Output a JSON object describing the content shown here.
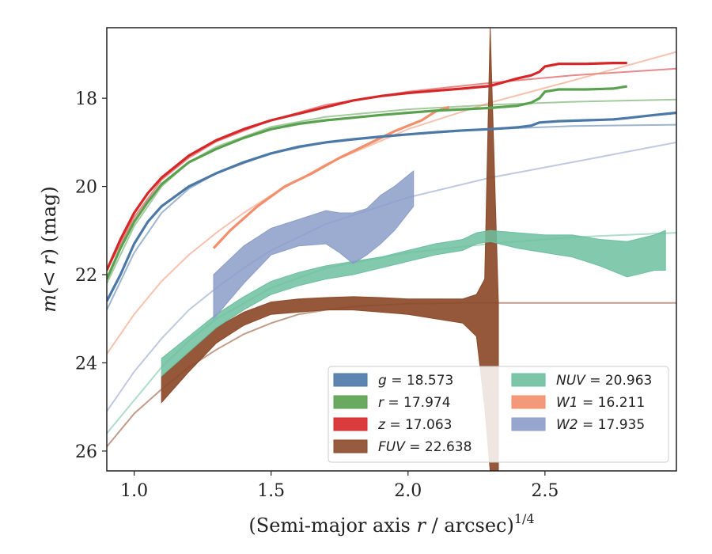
{
  "chart_data": {
    "type": "line",
    "title": "",
    "xlabel_main": "(Semi-major axis ",
    "xlabel_var": "r",
    "xlabel_rest": " / arcsec)",
    "xlabel_exp": "1/4",
    "ylabel_m": "m",
    "ylabel_open": "(",
    "ylabel_lt": "< ",
    "ylabel_r": "r",
    "ylabel_close": ")",
    "ylabel_unit": " (mag)",
    "xlim": [
      0.9,
      2.98
    ],
    "ylim": [
      26.45,
      16.4
    ],
    "y_inverted": true,
    "grid": false,
    "legend_placement": "lower-right",
    "x_ticks": [
      1.0,
      1.5,
      2.0,
      2.5
    ],
    "x_tick_labels": [
      "1.0",
      "1.5",
      "2.0",
      "2.5"
    ],
    "y_ticks": [
      18,
      20,
      22,
      24,
      26
    ],
    "y_tick_labels": [
      "18",
      "20",
      "22",
      "24",
      "26"
    ],
    "series": [
      {
        "name": "g",
        "label_var": "g",
        "label_val": " = 18.573",
        "color": "#4c78a8",
        "data": [
          [
            0.9,
            22.6
          ],
          [
            0.95,
            22.0
          ],
          [
            1.0,
            21.3
          ],
          [
            1.05,
            20.8
          ],
          [
            1.1,
            20.45
          ],
          [
            1.2,
            20.0
          ],
          [
            1.3,
            19.7
          ],
          [
            1.4,
            19.45
          ],
          [
            1.5,
            19.25
          ],
          [
            1.6,
            19.1
          ],
          [
            1.7,
            19.0
          ],
          [
            1.8,
            18.93
          ],
          [
            1.9,
            18.87
          ],
          [
            2.0,
            18.82
          ],
          [
            2.1,
            18.77
          ],
          [
            2.2,
            18.73
          ],
          [
            2.3,
            18.7
          ],
          [
            2.4,
            18.66
          ],
          [
            2.45,
            18.62
          ],
          [
            2.48,
            18.55
          ],
          [
            2.55,
            18.52
          ],
          [
            2.65,
            18.5
          ],
          [
            2.75,
            18.48
          ],
          [
            2.8,
            18.45
          ],
          [
            2.9,
            18.38
          ],
          [
            2.98,
            18.33
          ]
        ],
        "model": [
          [
            0.9,
            22.8
          ],
          [
            1.0,
            21.5
          ],
          [
            1.1,
            20.6
          ],
          [
            1.2,
            20.05
          ],
          [
            1.3,
            19.7
          ],
          [
            1.5,
            19.25
          ],
          [
            1.7,
            19.0
          ],
          [
            2.0,
            18.82
          ],
          [
            2.3,
            18.7
          ],
          [
            2.6,
            18.63
          ],
          [
            2.98,
            18.6
          ]
        ]
      },
      {
        "name": "r",
        "label_var": "r",
        "label_val": " = 17.974",
        "color": "#59a14f",
        "data": [
          [
            0.9,
            22.1
          ],
          [
            0.95,
            21.4
          ],
          [
            1.0,
            20.8
          ],
          [
            1.05,
            20.35
          ],
          [
            1.1,
            19.95
          ],
          [
            1.2,
            19.45
          ],
          [
            1.3,
            19.15
          ],
          [
            1.4,
            18.9
          ],
          [
            1.5,
            18.7
          ],
          [
            1.6,
            18.58
          ],
          [
            1.7,
            18.5
          ],
          [
            1.8,
            18.44
          ],
          [
            1.9,
            18.38
          ],
          [
            2.0,
            18.33
          ],
          [
            2.1,
            18.28
          ],
          [
            2.2,
            18.25
          ],
          [
            2.3,
            18.22
          ],
          [
            2.4,
            18.17
          ],
          [
            2.45,
            18.1
          ],
          [
            2.48,
            18.0
          ],
          [
            2.5,
            17.85
          ],
          [
            2.55,
            17.8
          ],
          [
            2.65,
            17.8
          ],
          [
            2.75,
            17.78
          ],
          [
            2.8,
            17.73
          ]
        ],
        "model": [
          [
            0.9,
            22.2
          ],
          [
            1.0,
            20.9
          ],
          [
            1.1,
            20.0
          ],
          [
            1.2,
            19.45
          ],
          [
            1.3,
            19.1
          ],
          [
            1.5,
            18.65
          ],
          [
            1.7,
            18.42
          ],
          [
            2.0,
            18.25
          ],
          [
            2.3,
            18.15
          ],
          [
            2.6,
            18.08
          ],
          [
            2.98,
            18.03
          ]
        ]
      },
      {
        "name": "z",
        "label_var": "z",
        "label_val": " = 17.063",
        "color": "#d62728",
        "data": [
          [
            0.9,
            21.9
          ],
          [
            0.95,
            21.2
          ],
          [
            1.0,
            20.6
          ],
          [
            1.05,
            20.15
          ],
          [
            1.1,
            19.8
          ],
          [
            1.2,
            19.3
          ],
          [
            1.3,
            18.95
          ],
          [
            1.4,
            18.7
          ],
          [
            1.5,
            18.5
          ],
          [
            1.6,
            18.35
          ],
          [
            1.7,
            18.2
          ],
          [
            1.8,
            18.05
          ],
          [
            1.9,
            17.95
          ],
          [
            2.0,
            17.88
          ],
          [
            2.1,
            17.83
          ],
          [
            2.2,
            17.78
          ],
          [
            2.3,
            17.72
          ],
          [
            2.4,
            17.55
          ],
          [
            2.45,
            17.48
          ],
          [
            2.48,
            17.4
          ],
          [
            2.5,
            17.28
          ],
          [
            2.55,
            17.22
          ],
          [
            2.65,
            17.22
          ],
          [
            2.75,
            17.2
          ],
          [
            2.8,
            17.2
          ]
        ],
        "model": [
          [
            0.9,
            21.9
          ],
          [
            1.0,
            20.7
          ],
          [
            1.1,
            19.85
          ],
          [
            1.2,
            19.35
          ],
          [
            1.3,
            18.98
          ],
          [
            1.5,
            18.5
          ],
          [
            1.7,
            18.15
          ],
          [
            2.0,
            17.85
          ],
          [
            2.3,
            17.65
          ],
          [
            2.6,
            17.48
          ],
          [
            2.98,
            17.33
          ]
        ]
      },
      {
        "name": "FUV",
        "label_var": "FUV",
        "label_val": " = 22.638",
        "color": "#8c4a2a",
        "band": true,
        "data_upper": [
          [
            1.1,
            24.3
          ],
          [
            1.2,
            23.75
          ],
          [
            1.3,
            23.2
          ],
          [
            1.4,
            22.85
          ],
          [
            1.5,
            22.62
          ],
          [
            1.6,
            22.55
          ],
          [
            1.7,
            22.52
          ],
          [
            1.8,
            22.5
          ],
          [
            1.9,
            22.52
          ],
          [
            2.0,
            22.55
          ],
          [
            2.1,
            22.55
          ],
          [
            2.2,
            22.55
          ],
          [
            2.25,
            22.45
          ],
          [
            2.28,
            22.1
          ],
          [
            2.3,
            16.4
          ],
          [
            2.33,
            22.65
          ]
        ],
        "data_lower": [
          [
            1.1,
            24.9
          ],
          [
            1.2,
            24.2
          ],
          [
            1.3,
            23.55
          ],
          [
            1.4,
            23.15
          ],
          [
            1.5,
            22.9
          ],
          [
            1.6,
            22.85
          ],
          [
            1.7,
            22.8
          ],
          [
            1.8,
            22.8
          ],
          [
            1.9,
            22.85
          ],
          [
            2.0,
            22.9
          ],
          [
            2.1,
            23.0
          ],
          [
            2.2,
            23.1
          ],
          [
            2.25,
            23.4
          ],
          [
            2.28,
            25.0
          ],
          [
            2.3,
            26.45
          ],
          [
            2.33,
            26.45
          ]
        ],
        "model": [
          [
            0.9,
            25.9
          ],
          [
            1.0,
            25.15
          ],
          [
            1.1,
            24.6
          ],
          [
            1.2,
            24.1
          ],
          [
            1.3,
            23.7
          ],
          [
            1.4,
            23.35
          ],
          [
            1.5,
            23.1
          ],
          [
            1.6,
            22.9
          ],
          [
            1.7,
            22.8
          ],
          [
            1.8,
            22.72
          ],
          [
            2.0,
            22.66
          ],
          [
            2.2,
            22.64
          ],
          [
            2.98,
            22.64
          ]
        ]
      },
      {
        "name": "NUV",
        "label_var": "NUV",
        "label_val": " = 20.963",
        "color": "#6dbfa0",
        "band": true,
        "data_upper": [
          [
            1.1,
            23.9
          ],
          [
            1.2,
            23.4
          ],
          [
            1.3,
            22.9
          ],
          [
            1.4,
            22.5
          ],
          [
            1.5,
            22.15
          ],
          [
            1.6,
            21.95
          ],
          [
            1.7,
            21.8
          ],
          [
            1.8,
            21.7
          ],
          [
            1.9,
            21.6
          ],
          [
            2.0,
            21.45
          ],
          [
            2.1,
            21.3
          ],
          [
            2.2,
            21.2
          ],
          [
            2.25,
            21.05
          ],
          [
            2.3,
            21.0
          ],
          [
            2.4,
            21.05
          ],
          [
            2.5,
            21.1
          ],
          [
            2.6,
            21.1
          ],
          [
            2.7,
            21.2
          ],
          [
            2.8,
            21.25
          ],
          [
            2.9,
            21.1
          ],
          [
            2.94,
            21.0
          ]
        ],
        "data_lower": [
          [
            1.1,
            24.3
          ],
          [
            1.2,
            23.75
          ],
          [
            1.3,
            23.2
          ],
          [
            1.4,
            22.8
          ],
          [
            1.5,
            22.45
          ],
          [
            1.6,
            22.25
          ],
          [
            1.7,
            22.1
          ],
          [
            1.8,
            22.0
          ],
          [
            1.9,
            21.85
          ],
          [
            2.0,
            21.7
          ],
          [
            2.1,
            21.55
          ],
          [
            2.2,
            21.45
          ],
          [
            2.25,
            21.3
          ],
          [
            2.3,
            21.25
          ],
          [
            2.4,
            21.4
          ],
          [
            2.5,
            21.5
          ],
          [
            2.6,
            21.6
          ],
          [
            2.7,
            21.8
          ],
          [
            2.8,
            22.05
          ],
          [
            2.9,
            21.9
          ],
          [
            2.94,
            21.9
          ]
        ],
        "model": [
          [
            0.9,
            25.6
          ],
          [
            1.0,
            24.85
          ],
          [
            1.1,
            24.1
          ],
          [
            1.2,
            23.5
          ],
          [
            1.3,
            23.0
          ],
          [
            1.5,
            22.3
          ],
          [
            1.7,
            21.85
          ],
          [
            2.0,
            21.5
          ],
          [
            2.3,
            21.3
          ],
          [
            2.6,
            21.15
          ],
          [
            2.98,
            21.05
          ]
        ]
      },
      {
        "name": "W1",
        "label_var": "W1",
        "label_val": " = 16.211",
        "color": "#f28e6b",
        "data": [
          [
            1.29,
            21.4
          ],
          [
            1.35,
            21.0
          ],
          [
            1.45,
            20.45
          ],
          [
            1.55,
            20.0
          ],
          [
            1.65,
            19.7
          ],
          [
            1.75,
            19.35
          ],
          [
            1.85,
            19.05
          ],
          [
            1.95,
            18.75
          ],
          [
            2.05,
            18.5
          ],
          [
            2.1,
            18.3
          ],
          [
            2.15,
            18.2
          ]
        ],
        "model": [
          [
            0.9,
            23.8
          ],
          [
            1.0,
            22.9
          ],
          [
            1.1,
            22.15
          ],
          [
            1.2,
            21.55
          ],
          [
            1.3,
            21.05
          ],
          [
            1.4,
            20.6
          ],
          [
            1.5,
            20.2
          ],
          [
            1.7,
            19.5
          ],
          [
            2.0,
            18.7
          ],
          [
            2.3,
            18.1
          ],
          [
            2.6,
            17.6
          ],
          [
            2.98,
            16.95
          ]
        ]
      },
      {
        "name": "W2",
        "label_var": "W2",
        "label_val": " = 17.935",
        "color": "#8b9cc8",
        "band": true,
        "data_upper": [
          [
            1.29,
            22.0
          ],
          [
            1.4,
            21.35
          ],
          [
            1.5,
            20.95
          ],
          [
            1.6,
            20.75
          ],
          [
            1.7,
            20.55
          ],
          [
            1.75,
            20.6
          ],
          [
            1.8,
            20.6
          ],
          [
            1.85,
            20.5
          ],
          [
            1.9,
            20.2
          ],
          [
            1.95,
            20.0
          ],
          [
            2.02,
            19.65
          ]
        ],
        "data_lower": [
          [
            1.29,
            23.0
          ],
          [
            1.4,
            22.2
          ],
          [
            1.5,
            21.55
          ],
          [
            1.6,
            21.35
          ],
          [
            1.7,
            21.3
          ],
          [
            1.75,
            21.5
          ],
          [
            1.8,
            21.75
          ],
          [
            1.85,
            21.55
          ],
          [
            1.9,
            21.3
          ],
          [
            1.95,
            21.0
          ],
          [
            2.02,
            20.45
          ]
        ],
        "model": [
          [
            0.9,
            25.1
          ],
          [
            1.0,
            24.2
          ],
          [
            1.1,
            23.45
          ],
          [
            1.2,
            22.8
          ],
          [
            1.3,
            22.3
          ],
          [
            1.4,
            21.85
          ],
          [
            1.5,
            21.45
          ],
          [
            1.7,
            20.85
          ],
          [
            2.0,
            20.25
          ],
          [
            2.3,
            19.8
          ],
          [
            2.6,
            19.45
          ],
          [
            2.98,
            19.0
          ]
        ]
      }
    ]
  }
}
